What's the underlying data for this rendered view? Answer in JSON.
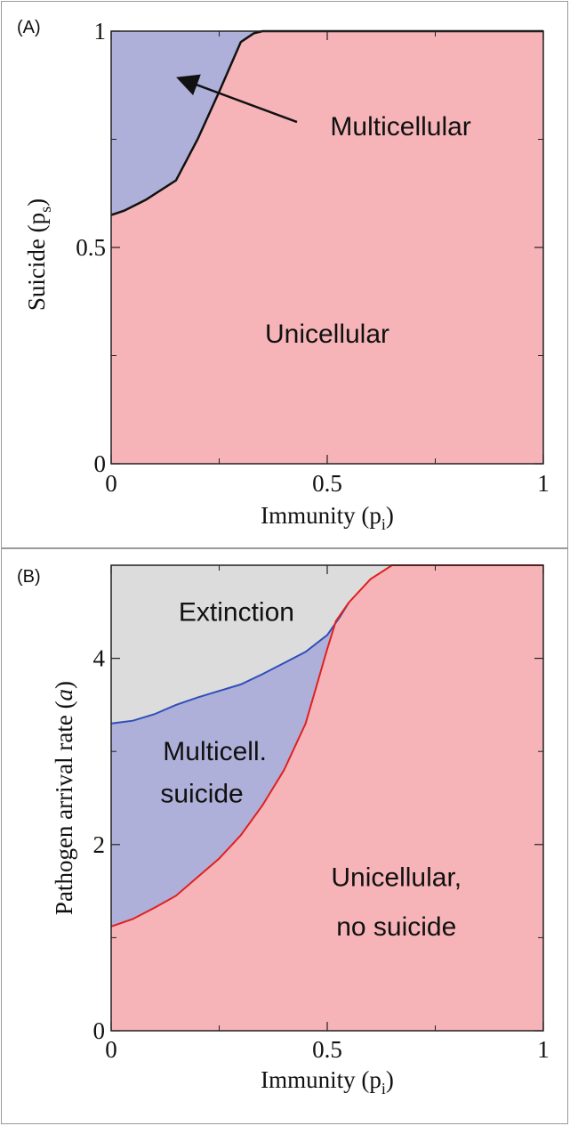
{
  "colors": {
    "unicellular": "#f6b4b8",
    "multicellular": "#aeb0d9",
    "extinction": "#dcdcdc",
    "boundary_a": "#111111",
    "boundary_multi": "#2f4fb8",
    "boundary_uni": "#e02020",
    "axis": "#222222"
  },
  "chart_data": [
    {
      "type": "area",
      "panel_label": "(A)",
      "xlabel": "Immunity (p",
      "xlabel_sub": "i",
      "xlabel_close": ")",
      "ylabel": "Suicide (p",
      "ylabel_sub": "s",
      "ylabel_close": ")",
      "xlim": [
        0,
        1
      ],
      "ylim": [
        0,
        1
      ],
      "xticks": [
        0,
        0.5,
        1
      ],
      "xtick_labels": [
        "0",
        "0.5",
        "1"
      ],
      "yticks": [
        0,
        0.5,
        1
      ],
      "ytick_labels": [
        "0",
        "0.5",
        "1"
      ],
      "minor_ticks": [
        0.25,
        0.75
      ],
      "regions": [
        {
          "name": "Multicellular",
          "fill": "multicellular",
          "side": "above"
        },
        {
          "name": "Unicellular",
          "fill": "unicellular",
          "side": "below"
        }
      ],
      "boundary": {
        "color": "boundary_a",
        "x": [
          0,
          0.03,
          0.08,
          0.15,
          0.2,
          0.25,
          0.3,
          0.33,
          0.35,
          1.0
        ],
        "y": [
          0.575,
          0.585,
          0.61,
          0.655,
          0.75,
          0.86,
          0.975,
          0.995,
          1.0,
          1.0
        ]
      },
      "annotations": [
        {
          "text": "Multicellular",
          "x": 0.67,
          "y": 0.78,
          "arrow_to": [
            0.16,
            0.89
          ],
          "arrow_from": [
            0.43,
            0.79
          ]
        },
        {
          "text": "Unicellular",
          "x": 0.5,
          "y": 0.3
        }
      ]
    },
    {
      "type": "area",
      "panel_label": "(B)",
      "xlabel": "Immunity (p",
      "xlabel_sub": "i",
      "xlabel_close": ")",
      "ylabel": "Pathogen arrival rate (",
      "ylabel_italic": "a",
      "ylabel_close": ")",
      "xlim": [
        0,
        1
      ],
      "ylim": [
        0,
        5
      ],
      "xticks": [
        0,
        0.5,
        1
      ],
      "xtick_labels": [
        "0",
        "0.5",
        "1"
      ],
      "yticks": [
        0,
        2,
        4
      ],
      "ytick_labels": [
        "0",
        "2",
        "4"
      ],
      "minor_ticks_x": [
        0.25,
        0.75
      ],
      "minor_ticks_y": [
        1,
        3,
        5
      ],
      "regions": [
        {
          "name": "Extinction",
          "fill": "extinction"
        },
        {
          "name": "Multicell. suicide",
          "fill": "multicellular"
        },
        {
          "name": "Unicellular, no suicide",
          "fill": "unicellular"
        }
      ],
      "boundary_extinction": {
        "color": "boundary_multi",
        "x": [
          0,
          0.05,
          0.1,
          0.15,
          0.2,
          0.25,
          0.3,
          0.35,
          0.4,
          0.45,
          0.5,
          0.53,
          0.55
        ],
        "y": [
          3.3,
          3.33,
          3.4,
          3.5,
          3.58,
          3.65,
          3.72,
          3.83,
          3.95,
          4.07,
          4.25,
          4.45,
          4.6
        ]
      },
      "boundary_unicellular": {
        "color": "boundary_uni",
        "x": [
          0,
          0.05,
          0.1,
          0.15,
          0.2,
          0.25,
          0.3,
          0.35,
          0.4,
          0.45,
          0.5,
          0.52,
          0.55,
          0.6,
          0.65,
          1.0
        ],
        "y": [
          1.12,
          1.2,
          1.32,
          1.45,
          1.65,
          1.85,
          2.1,
          2.42,
          2.8,
          3.3,
          4.1,
          4.4,
          4.6,
          4.85,
          5.0,
          5.0
        ]
      },
      "annotations": [
        {
          "text": "Extinction",
          "x": 0.29,
          "y": 4.5
        },
        {
          "text": "Multicell.",
          "x": 0.24,
          "y": 3.0
        },
        {
          "text": "suicide",
          "x": 0.21,
          "y": 2.55
        },
        {
          "text": "Unicellular,",
          "x": 0.66,
          "y": 1.65
        },
        {
          "text": "no suicide",
          "x": 0.66,
          "y": 1.12
        }
      ]
    }
  ]
}
